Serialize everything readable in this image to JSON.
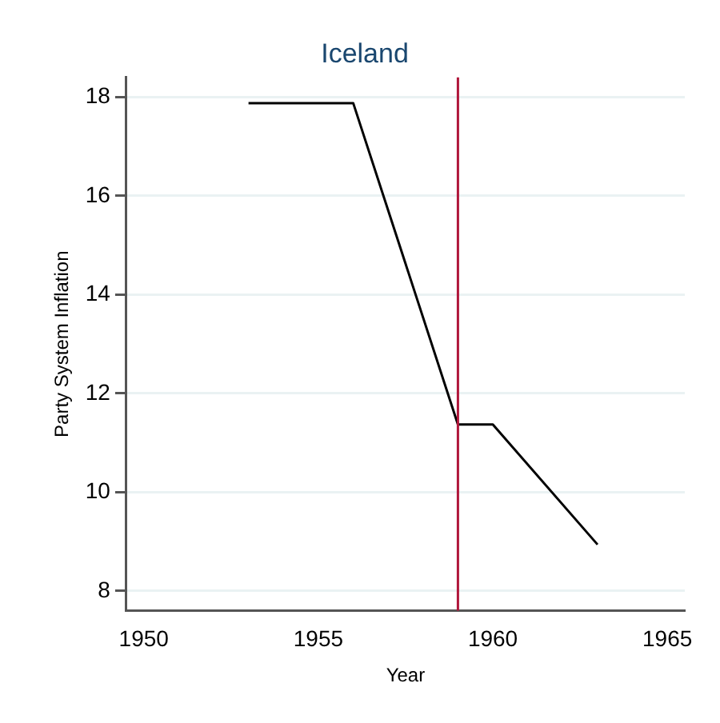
{
  "chart_data": {
    "type": "line",
    "title": "Iceland",
    "xlabel": "Year",
    "ylabel": "Party System Inflation",
    "x": [
      1953,
      1956,
      1959,
      1960,
      1963
    ],
    "series": [
      {
        "color": "#000000",
        "values": [
          17.88,
          17.88,
          11.37,
          11.37,
          8.94
        ]
      }
    ],
    "xlim": [
      1949.5,
      1965.5
    ],
    "xticks": [
      1950,
      1955,
      1960,
      1965
    ],
    "ylim": [
      7.6,
      18.4
    ],
    "yticks": [
      8,
      10,
      12,
      14,
      16,
      18
    ],
    "ref_lines": [
      {
        "axis": "x",
        "value": 1959,
        "color": "#b0163a"
      }
    ],
    "grid": "y",
    "legend": false,
    "marker": "none",
    "line_style": "solid"
  }
}
